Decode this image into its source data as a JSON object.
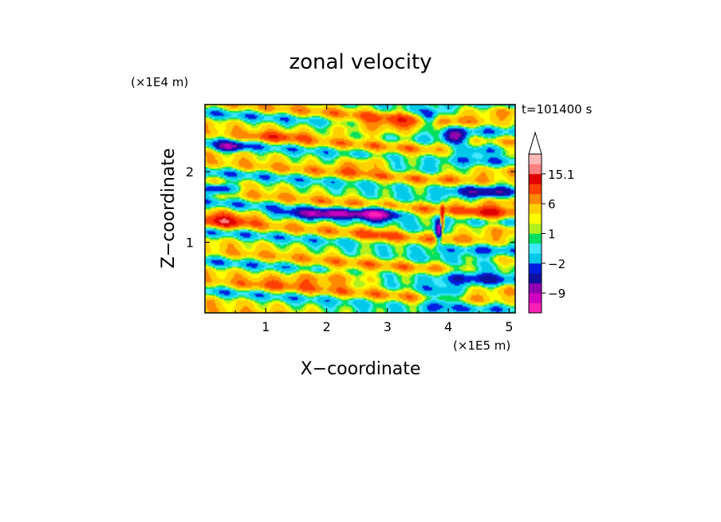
{
  "chart_data": {
    "type": "heatmap",
    "title": "zonal velocity",
    "xlabel": "X−coordinate",
    "ylabel": "Z−coordinate",
    "x_unit": "(×1E5 m)",
    "y_unit": "(×1E4 m)",
    "time_label": "t=101400 s",
    "xlim": [
      0,
      5.1
    ],
    "ylim": [
      0,
      2.95
    ],
    "x_ticks": [
      "1",
      "2",
      "3",
      "4",
      "5"
    ],
    "y_ticks": [
      "1",
      "2"
    ],
    "colorbar": {
      "labels": [
        "15.1",
        "6",
        "1",
        "−2",
        "−9"
      ],
      "levels": [
        -15,
        -12,
        -9,
        -6,
        -4,
        -2,
        -1,
        0,
        1,
        2,
        4,
        6,
        9,
        12,
        15.1
      ],
      "colors": [
        "#ff20b8",
        "#d000c0",
        "#9000b0",
        "#1010a0",
        "#0020e0",
        "#00c8e8",
        "#40e8ff",
        "#00e060",
        "#b0f020",
        "#ffff00",
        "#ffd000",
        "#ff8800",
        "#ff4000",
        "#e00000",
        "#ff8080",
        "#ffb8b8"
      ],
      "extend": "max"
    },
    "fields": [
      {
        "cx": 0.3,
        "cz": 1.3,
        "sx": 0.45,
        "sz": 0.1,
        "amp": 8
      },
      {
        "cx": 0.2,
        "cz": 1.75,
        "sx": 0.3,
        "sz": 0.08,
        "amp": -10
      },
      {
        "cx": 0.4,
        "cz": 2.35,
        "sx": 0.25,
        "sz": 0.07,
        "amp": -9
      },
      {
        "cx": 2.0,
        "cz": 1.4,
        "sx": 0.7,
        "sz": 0.07,
        "amp": -11
      },
      {
        "cx": 2.85,
        "cz": 1.4,
        "sx": 0.3,
        "sz": 0.1,
        "amp": -12
      },
      {
        "cx": 2.85,
        "cz": 1.1,
        "sx": 0.3,
        "sz": 0.15,
        "amp": 3
      },
      {
        "cx": 2.1,
        "cz": 0.5,
        "sx": 0.7,
        "sz": 0.12,
        "amp": 5
      },
      {
        "cx": 3.0,
        "cz": 2.65,
        "sx": 0.8,
        "sz": 0.12,
        "amp": 6
      },
      {
        "cx": 2.6,
        "cz": 2.1,
        "sx": 0.4,
        "sz": 0.1,
        "amp": 5
      },
      {
        "cx": 1.2,
        "cz": 2.5,
        "sx": 0.5,
        "sz": 0.08,
        "amp": 4
      },
      {
        "cx": 3.85,
        "cz": 1.15,
        "sx": 0.06,
        "sz": 0.15,
        "amp": -13
      },
      {
        "cx": 3.9,
        "cz": 1.3,
        "sx": 0.03,
        "sz": 0.2,
        "amp": 14
      },
      {
        "cx": 4.45,
        "cz": 2.3,
        "sx": 0.5,
        "sz": 0.08,
        "amp": -8
      },
      {
        "cx": 4.6,
        "cz": 1.7,
        "sx": 0.5,
        "sz": 0.08,
        "amp": -6
      },
      {
        "cx": 4.7,
        "cz": 1.4,
        "sx": 0.5,
        "sz": 0.1,
        "amp": 8
      },
      {
        "cx": 4.5,
        "cz": 0.6,
        "sx": 0.6,
        "sz": 0.2,
        "amp": -5
      },
      {
        "cx": 3.7,
        "cz": 2.75,
        "sx": 0.15,
        "sz": 0.12,
        "amp": -10
      },
      {
        "cx": 4.1,
        "cz": 2.5,
        "sx": 0.2,
        "sz": 0.1,
        "amp": -9
      },
      {
        "cx": 3.9,
        "cz": 0.2,
        "sx": 0.3,
        "sz": 0.15,
        "amp": -7
      },
      {
        "cx": 1.0,
        "cz": 0.4,
        "sx": 0.6,
        "sz": 0.12,
        "amp": 2
      }
    ]
  }
}
